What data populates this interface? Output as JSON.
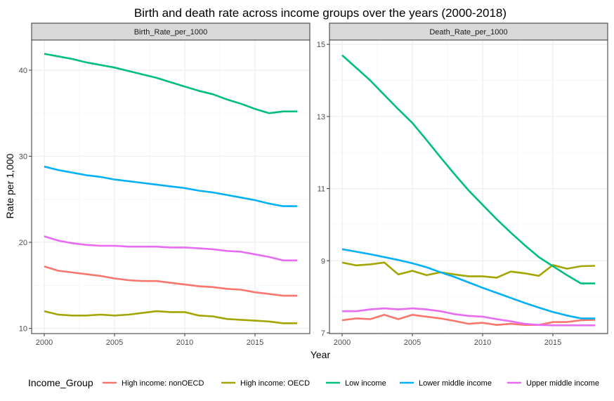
{
  "chart_data": {
    "type": "line",
    "title": "Birth and death rate across income groups over the years (2000-2018)",
    "xlabel": "Year",
    "ylabel": "Rate per 1,000",
    "grid": true,
    "legend": {
      "title": "Income_Group",
      "position": "bottom"
    },
    "x": [
      2000,
      2001,
      2002,
      2003,
      2004,
      2005,
      2006,
      2007,
      2008,
      2009,
      2010,
      2011,
      2012,
      2013,
      2014,
      2015,
      2016,
      2017,
      2018
    ],
    "x_ticks": [
      2000,
      2005,
      2010,
      2015
    ],
    "panels": [
      {
        "name": "Birth_Rate_per_1000",
        "ylim": [
          9.4,
          43.5
        ],
        "y_ticks": [
          10,
          20,
          30,
          40
        ],
        "series": [
          {
            "name": "High income: nonOECD",
            "color": "#F8766D",
            "values": [
              17.2,
              16.7,
              16.5,
              16.3,
              16.1,
              15.8,
              15.6,
              15.5,
              15.5,
              15.3,
              15.1,
              14.9,
              14.8,
              14.6,
              14.5,
              14.2,
              14.0,
              13.8,
              13.8
            ]
          },
          {
            "name": "High income: OECD",
            "color": "#A3A500",
            "values": [
              12.0,
              11.6,
              11.5,
              11.5,
              11.6,
              11.5,
              11.6,
              11.8,
              12.0,
              11.9,
              11.9,
              11.5,
              11.4,
              11.1,
              11.0,
              10.9,
              10.8,
              10.6,
              10.6
            ]
          },
          {
            "name": "Low income",
            "color": "#00BF7D",
            "values": [
              41.9,
              41.6,
              41.3,
              40.9,
              40.6,
              40.3,
              39.9,
              39.5,
              39.1,
              38.6,
              38.1,
              37.6,
              37.2,
              36.6,
              36.1,
              35.5,
              35.0,
              35.2,
              35.2
            ]
          },
          {
            "name": "Lower middle income",
            "color": "#00B0F6",
            "values": [
              28.8,
              28.4,
              28.1,
              27.8,
              27.6,
              27.3,
              27.1,
              26.9,
              26.7,
              26.5,
              26.3,
              26.0,
              25.8,
              25.5,
              25.2,
              24.9,
              24.5,
              24.2,
              24.2
            ]
          },
          {
            "name": "Upper middle income",
            "color": "#E76BF3",
            "values": [
              20.7,
              20.2,
              19.9,
              19.7,
              19.6,
              19.6,
              19.5,
              19.5,
              19.5,
              19.4,
              19.4,
              19.3,
              19.2,
              19.0,
              18.9,
              18.6,
              18.3,
              17.9,
              17.9
            ]
          }
        ]
      },
      {
        "name": "Death_Rate_per_1000",
        "ylim": [
          6.98,
          15.12
        ],
        "y_ticks": [
          7,
          9,
          11,
          13,
          15
        ],
        "series": [
          {
            "name": "High income: nonOECD",
            "color": "#F8766D",
            "values": [
              7.35,
              7.4,
              7.38,
              7.5,
              7.38,
              7.5,
              7.45,
              7.4,
              7.33,
              7.25,
              7.28,
              7.22,
              7.25,
              7.22,
              7.22,
              7.3,
              7.3,
              7.35,
              7.36
            ]
          },
          {
            "name": "High income: OECD",
            "color": "#A3A500",
            "values": [
              8.95,
              8.87,
              8.9,
              8.95,
              8.62,
              8.72,
              8.6,
              8.68,
              8.62,
              8.57,
              8.57,
              8.53,
              8.7,
              8.65,
              8.58,
              8.88,
              8.78,
              8.85,
              8.86
            ]
          },
          {
            "name": "Low income",
            "color": "#00BF7D",
            "values": [
              14.7,
              14.35,
              14.0,
              13.6,
              13.2,
              12.82,
              12.35,
              11.87,
              11.4,
              10.95,
              10.55,
              10.15,
              9.78,
              9.43,
              9.1,
              8.85,
              8.6,
              8.37,
              8.37
            ]
          },
          {
            "name": "Lower middle income",
            "color": "#00B0F6",
            "values": [
              9.32,
              9.25,
              9.18,
              9.1,
              9.02,
              8.93,
              8.82,
              8.68,
              8.55,
              8.4,
              8.25,
              8.11,
              7.97,
              7.83,
              7.7,
              7.58,
              7.48,
              7.4,
              7.4
            ]
          },
          {
            "name": "Upper middle income",
            "color": "#E76BF3",
            "values": [
              7.6,
              7.6,
              7.65,
              7.68,
              7.65,
              7.68,
              7.65,
              7.6,
              7.52,
              7.47,
              7.45,
              7.38,
              7.32,
              7.25,
              7.22,
              7.21,
              7.21,
              7.21,
              7.21
            ]
          }
        ]
      }
    ]
  }
}
